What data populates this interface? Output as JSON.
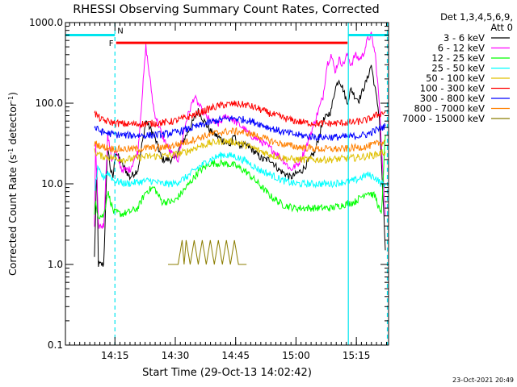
{
  "chart_data": {
    "type": "line",
    "title": "RHESSI Observing Summary Count Rates, Corrected",
    "xlabel": "Start Time (29-Oct-13 14:02:42)",
    "ylabel": "Corrected Count Rate (s",
    "ylabel_sup1": "-1",
    "ylabel_mid": " detector",
    "ylabel_sup2": "-1",
    "ylabel_end": ")",
    "yscale": "log",
    "ylim": [
      0.1,
      1000
    ],
    "xlim_minutes": [
      0,
      80.3
    ],
    "x_ticks": [
      {
        "label": "14:15",
        "t": 12.3
      },
      {
        "label": "14:30",
        "t": 27.3
      },
      {
        "label": "14:45",
        "t": 42.3
      },
      {
        "label": "15:00",
        "t": 57.3
      },
      {
        "label": "15:15",
        "t": 72.3
      },
      {
        "label": "15:30",
        "t": 87.3
      }
    ],
    "y_ticks": [
      {
        "label": "0.1",
        "v": 0.1
      },
      {
        "label": "1.0",
        "v": 1
      },
      {
        "label": "10.0",
        "v": 10
      },
      {
        "label": "100.0",
        "v": 100
      },
      {
        "label": "1000.0",
        "v": 1000
      }
    ],
    "legend": {
      "placement": "right",
      "header": [
        "Det 1,3,4,5,6,9,",
        "Att 0"
      ],
      "entries": [
        {
          "label": "3 - 6 keV",
          "color": "#000000"
        },
        {
          "label": "6 - 12 keV",
          "color": "#ff00ff"
        },
        {
          "label": "12 - 25 keV",
          "color": "#00ff00"
        },
        {
          "label": "25 - 50 keV",
          "color": "#00ffff"
        },
        {
          "label": "50 - 100 keV",
          "color": "#e0c000"
        },
        {
          "label": "100 - 300 keV",
          "color": "#ff0000"
        },
        {
          "label": "300 - 800 keV",
          "color": "#0000ff"
        },
        {
          "label": "800 - 7000 keV",
          "color": "#ff8000"
        },
        {
          "label": "7000 - 15000 keV",
          "color": "#8b7d00"
        }
      ]
    },
    "series": [
      {
        "name": "3 - 6 keV",
        "color": "#000000",
        "x": [
          7.2,
          7.8,
          8.2,
          9.5,
          10.5,
          11.2,
          11.8,
          12.5,
          14,
          16,
          18,
          20,
          22,
          24,
          27,
          30,
          33,
          36,
          39,
          41,
          42,
          43,
          45,
          47,
          49,
          51,
          53,
          56,
          59,
          62,
          64,
          66,
          67,
          68,
          69,
          70,
          71,
          72,
          73,
          74,
          75,
          76,
          78,
          79.5
        ],
        "values": [
          1.2,
          15,
          1,
          1,
          30,
          15,
          12,
          25,
          18,
          12,
          15,
          60,
          40,
          20,
          20,
          40,
          80,
          45,
          35,
          30,
          40,
          30,
          30,
          25,
          20,
          20,
          15,
          12,
          15,
          25,
          60,
          80,
          150,
          200,
          150,
          100,
          150,
          120,
          110,
          150,
          200,
          300,
          70,
          1.5
        ]
      },
      {
        "name": "6 - 12 keV",
        "color": "#ff00ff",
        "x": [
          7.2,
          7.5,
          8.2,
          9.5,
          10.5,
          11.5,
          12.5,
          14,
          16,
          18,
          20,
          22,
          24,
          26,
          28,
          30,
          32,
          34,
          36,
          38,
          40,
          42,
          44,
          46,
          48,
          50,
          52,
          54,
          56,
          58,
          60,
          62,
          64,
          65,
          66,
          67,
          68,
          69,
          70,
          71,
          72,
          73,
          74,
          75,
          76,
          77,
          78,
          79.5
        ],
        "values": [
          3,
          30,
          3,
          3,
          40,
          20,
          25,
          15,
          15,
          25,
          500,
          80,
          40,
          25,
          20,
          60,
          120,
          80,
          60,
          55,
          70,
          60,
          50,
          40,
          35,
          30,
          25,
          20,
          15,
          18,
          30,
          60,
          120,
          300,
          400,
          250,
          350,
          300,
          400,
          300,
          400,
          350,
          400,
          600,
          700,
          400,
          100,
          4
        ]
      },
      {
        "name": "12 - 25 keV",
        "color": "#00ff00",
        "x": [
          7.2,
          7.5,
          8.2,
          9.5,
          10.5,
          12,
          14,
          16,
          18,
          20,
          22,
          24,
          27,
          30,
          33,
          36,
          39,
          42,
          45,
          48,
          51,
          54,
          57,
          60,
          63,
          66,
          69,
          72,
          75,
          77,
          78.5,
          79.5
        ],
        "values": [
          4,
          6,
          4,
          4,
          8,
          4.5,
          4.2,
          4.5,
          5,
          8,
          9,
          6,
          6,
          9,
          14,
          18,
          18,
          17,
          14,
          10,
          7,
          5.5,
          5,
          5,
          5,
          5,
          5.5,
          6,
          8,
          7,
          4,
          40
        ]
      },
      {
        "name": "25 - 50 keV",
        "color": "#00ffff",
        "x": [
          7.2,
          8,
          9.5,
          10.5,
          12,
          15,
          18,
          21,
          24,
          27,
          30,
          33,
          36,
          39,
          42,
          45,
          48,
          51,
          54,
          57,
          60,
          63,
          66,
          69,
          72,
          75,
          77,
          78.5,
          79.5
        ],
        "values": [
          8,
          15,
          12,
          14,
          11,
          10,
          10.5,
          11,
          10,
          10,
          12,
          16,
          20,
          23,
          22,
          19,
          15,
          13,
          11,
          10,
          10,
          10,
          10,
          10.5,
          11,
          13,
          12,
          10,
          10
        ]
      },
      {
        "name": "50 - 100 keV",
        "color": "#e0c000",
        "x": [
          7.2,
          9,
          12,
          15,
          18,
          21,
          24,
          27,
          30,
          33,
          36,
          39,
          42,
          45,
          48,
          51,
          54,
          57,
          60,
          63,
          66,
          69,
          72,
          75,
          77,
          79.5
        ],
        "values": [
          25,
          22,
          21,
          20,
          21,
          22,
          22,
          23,
          25,
          29,
          32,
          34,
          33,
          30,
          26,
          23,
          21,
          20,
          20,
          20,
          20,
          20.5,
          21,
          22,
          23,
          25
        ]
      },
      {
        "name": "100 - 300 keV",
        "color": "#ff0000",
        "x": [
          7.2,
          9,
          12,
          15,
          18,
          21,
          24,
          27,
          30,
          33,
          36,
          39,
          42,
          45,
          48,
          51,
          54,
          57,
          60,
          63,
          66,
          69,
          72,
          75,
          77,
          79.5
        ],
        "values": [
          75,
          62,
          57,
          55,
          55,
          56,
          57,
          60,
          66,
          75,
          86,
          95,
          98,
          95,
          85,
          74,
          66,
          60,
          57,
          56,
          56,
          57,
          58,
          62,
          70,
          78
        ]
      },
      {
        "name": "300 - 800 keV",
        "color": "#0000ff",
        "x": [
          7.2,
          9,
          12,
          15,
          18,
          21,
          24,
          27,
          30,
          33,
          36,
          39,
          42,
          45,
          48,
          51,
          54,
          57,
          60,
          63,
          66,
          69,
          72,
          75,
          77,
          79.5
        ],
        "values": [
          50,
          44,
          41,
          40,
          40,
          40,
          41,
          43,
          47,
          52,
          58,
          63,
          65,
          62,
          56,
          49,
          44,
          41,
          39,
          38,
          38,
          38,
          39,
          41,
          46,
          52
        ]
      },
      {
        "name": "800 - 7000 keV",
        "color": "#ff8000",
        "x": [
          7.2,
          9,
          12,
          15,
          18,
          21,
          24,
          27,
          30,
          33,
          36,
          39,
          42,
          45,
          48,
          51,
          54,
          57,
          60,
          63,
          66,
          69,
          72,
          75,
          77,
          79.5
        ],
        "values": [
          32,
          29,
          27,
          27,
          27,
          28,
          28,
          30,
          33,
          37,
          41,
          44,
          45,
          43,
          39,
          34,
          31,
          29,
          28,
          27,
          27,
          27,
          28,
          29,
          31,
          34
        ]
      },
      {
        "name": "7000 - 15000 keV",
        "color": "#8b7d00",
        "x": [
          25.5,
          26.5,
          27,
          28,
          29,
          29.5,
          30,
          31,
          32,
          33,
          34,
          35,
          36,
          37,
          38,
          39,
          40,
          41,
          42,
          43,
          44,
          44.5,
          45
        ],
        "values": [
          1,
          1,
          1,
          1,
          2,
          1,
          2,
          1,
          2,
          1,
          2,
          1,
          2,
          1,
          2,
          1,
          2,
          1,
          2,
          1,
          1,
          1,
          1
        ]
      }
    ],
    "overlays": [
      {
        "type": "bar",
        "label": "N",
        "color": "#00e5ee",
        "y": 700,
        "x_start": 0,
        "x_end": 12.3,
        "label_at_end": true
      },
      {
        "type": "bar",
        "label": "",
        "color": "#00e5ee",
        "y": 700,
        "x_start": 70.3,
        "x_end": 80.3
      },
      {
        "type": "bar",
        "label": "F",
        "color": "#ff0000",
        "y": 560,
        "x_start": 12.6,
        "x_end": 70.1
      },
      {
        "type": "vline",
        "color": "#00e5ee",
        "style": "dashed",
        "x": 12.3
      },
      {
        "type": "vline",
        "color": "#00e5ee",
        "style": "solid",
        "x": 70.3
      },
      {
        "type": "vline",
        "color": "#00e5ee",
        "style": "dashed",
        "x": 80.0
      }
    ],
    "footer": "23-Oct-2021 20:49"
  }
}
